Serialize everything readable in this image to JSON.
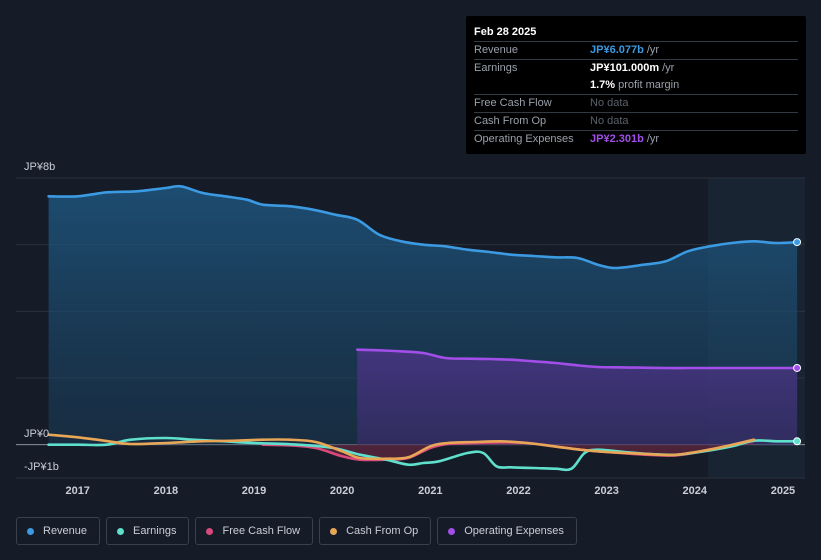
{
  "tooltip": {
    "date": "Feb 28 2025",
    "rows": [
      {
        "label": "Revenue",
        "value": "JP¥6.077b",
        "unit": "/yr",
        "color": "#3b9ae1"
      },
      {
        "label": "Earnings",
        "value": "JP¥101.000m",
        "unit": "/yr",
        "color": "#ffffff"
      },
      {
        "label": "",
        "value": "1.7%",
        "unit": "profit margin",
        "color": "#ffffff"
      },
      {
        "label": "Free Cash Flow",
        "value": "No data",
        "unit": "",
        "color": "#5b626c"
      },
      {
        "label": "Cash From Op",
        "value": "No data",
        "unit": "",
        "color": "#5b626c"
      },
      {
        "label": "Operating Expenses",
        "value": "JP¥2.301b",
        "unit": "/yr",
        "color": "#a24ee8"
      }
    ]
  },
  "legend": [
    {
      "label": "Revenue",
      "color": "#3b9ae1"
    },
    {
      "label": "Earnings",
      "color": "#5fe0cc"
    },
    {
      "label": "Free Cash Flow",
      "color": "#d94a7c"
    },
    {
      "label": "Cash From Op",
      "color": "#e8a657"
    },
    {
      "label": "Operating Expenses",
      "color": "#a24ee8"
    }
  ],
  "chart_data": {
    "type": "area",
    "title": "",
    "y_labels": [
      "JP¥8b",
      "JP¥0",
      "-JP¥1b"
    ],
    "ylim": [
      -1,
      8
    ],
    "xlim": [
      2016.3,
      2025.25
    ],
    "x_ticks": [
      "2017",
      "2018",
      "2019",
      "2020",
      "2021",
      "2022",
      "2023",
      "2024",
      "2025"
    ],
    "x_tick_values": [
      2017,
      2018,
      2019,
      2020,
      2021,
      2022,
      2023,
      2024,
      2025
    ],
    "highlight_from": 2024.15,
    "series": [
      {
        "name": "Revenue",
        "color": "#3b9ae1",
        "fill": true,
        "x": [
          2016.67,
          2017.0,
          2017.33,
          2017.67,
          2018.0,
          2018.17,
          2018.42,
          2018.67,
          2018.92,
          2019.1,
          2019.42,
          2019.67,
          2019.92,
          2020.17,
          2020.42,
          2020.67,
          2020.92,
          2021.17,
          2021.42,
          2021.67,
          2021.92,
          2022.17,
          2022.42,
          2022.67,
          2022.9,
          2023.1,
          2023.42,
          2023.67,
          2023.92,
          2024.17,
          2024.42,
          2024.67,
          2024.92,
          2025.16
        ],
        "values": [
          7.45,
          7.45,
          7.57,
          7.6,
          7.7,
          7.75,
          7.55,
          7.45,
          7.35,
          7.2,
          7.15,
          7.05,
          6.9,
          6.75,
          6.3,
          6.1,
          6.0,
          5.95,
          5.85,
          5.78,
          5.7,
          5.66,
          5.62,
          5.6,
          5.4,
          5.3,
          5.4,
          5.5,
          5.8,
          5.95,
          6.05,
          6.1,
          6.05,
          6.077
        ]
      },
      {
        "name": "Operating Expenses",
        "color": "#a24ee8",
        "fill": true,
        "x": [
          2020.17,
          2020.42,
          2020.67,
          2020.92,
          2021.17,
          2021.42,
          2021.67,
          2021.92,
          2022.17,
          2022.42,
          2022.67,
          2022.9,
          2023.1,
          2023.42,
          2023.67,
          2023.92,
          2024.17,
          2024.42,
          2024.67,
          2024.92,
          2025.16
        ],
        "values": [
          2.85,
          2.83,
          2.8,
          2.75,
          2.6,
          2.58,
          2.57,
          2.55,
          2.5,
          2.45,
          2.38,
          2.33,
          2.32,
          2.31,
          2.3,
          2.3,
          2.3,
          2.3,
          2.3,
          2.3,
          2.301
        ]
      },
      {
        "name": "Earnings",
        "color": "#5fe0cc",
        "fill": false,
        "x": [
          2016.67,
          2017.0,
          2017.33,
          2017.6,
          2018.0,
          2018.3,
          2018.67,
          2019.0,
          2019.5,
          2019.9,
          2020.2,
          2020.5,
          2020.75,
          2020.92,
          2021.1,
          2021.42,
          2021.6,
          2021.75,
          2021.92,
          2022.17,
          2022.42,
          2022.6,
          2022.75,
          2022.9,
          2023.2,
          2023.5,
          2023.8,
          2024.1,
          2024.42,
          2024.67,
          2024.92,
          2025.16
        ],
        "values": [
          0.0,
          0.0,
          0.0,
          0.15,
          0.2,
          0.15,
          0.1,
          0.05,
          0.0,
          -0.1,
          -0.3,
          -0.45,
          -0.6,
          -0.55,
          -0.5,
          -0.25,
          -0.25,
          -0.65,
          -0.68,
          -0.7,
          -0.72,
          -0.72,
          -0.25,
          -0.15,
          -0.22,
          -0.28,
          -0.3,
          -0.2,
          -0.05,
          0.12,
          0.1,
          0.101
        ]
      },
      {
        "name": "Free Cash Flow",
        "color": "#d94a7c",
        "fill": true,
        "x": [
          2019.1,
          2019.4,
          2019.7,
          2020.0,
          2020.2,
          2020.5,
          2020.75,
          2021.0,
          2021.2,
          2021.5,
          2021.8,
          2022.1,
          2022.4,
          2022.7,
          2023.0,
          2023.3,
          2023.6,
          2023.8,
          2024.1,
          2024.4,
          2024.67
        ],
        "values": [
          0.0,
          -0.02,
          -0.1,
          -0.35,
          -0.45,
          -0.45,
          -0.4,
          -0.1,
          0.02,
          0.05,
          0.07,
          0.05,
          -0.05,
          -0.15,
          -0.22,
          -0.28,
          -0.32,
          -0.32,
          -0.2,
          -0.05,
          0.12
        ]
      },
      {
        "name": "Cash From Op",
        "color": "#e8a657",
        "fill": false,
        "x": [
          2016.67,
          2017.0,
          2017.3,
          2017.6,
          2018.0,
          2018.4,
          2018.8,
          2019.1,
          2019.4,
          2019.7,
          2020.0,
          2020.2,
          2020.5,
          2020.75,
          2021.0,
          2021.2,
          2021.5,
          2021.8,
          2022.1,
          2022.4,
          2022.7,
          2023.0,
          2023.3,
          2023.6,
          2023.8,
          2024.1,
          2024.4,
          2024.67
        ],
        "values": [
          0.3,
          0.22,
          0.12,
          0.02,
          0.05,
          0.1,
          0.12,
          0.15,
          0.15,
          0.08,
          -0.2,
          -0.4,
          -0.42,
          -0.38,
          -0.05,
          0.05,
          0.08,
          0.1,
          0.05,
          -0.05,
          -0.15,
          -0.22,
          -0.26,
          -0.3,
          -0.3,
          -0.18,
          -0.02,
          0.15
        ]
      }
    ]
  }
}
